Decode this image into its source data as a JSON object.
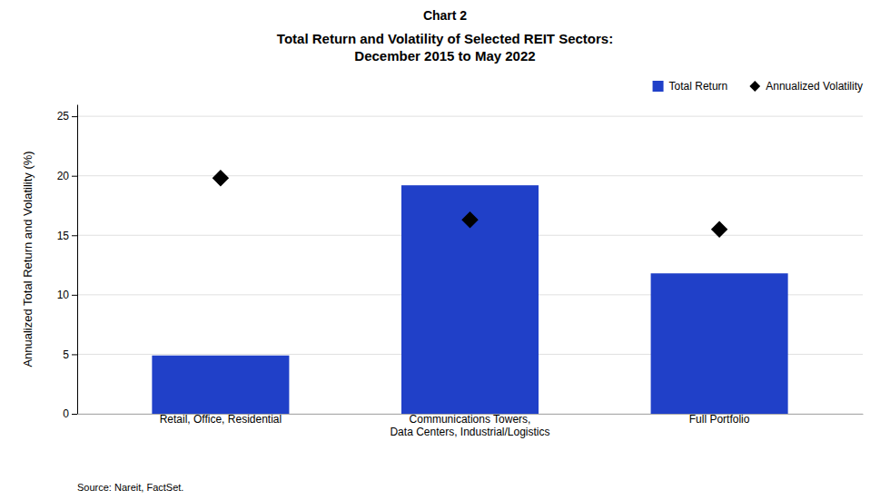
{
  "chart_data": {
    "type": "bar",
    "title": "Chart 2",
    "subtitle": "Total Return and Volatility of Selected REIT Sectors:\nDecember 2015 to May 2022",
    "categories": [
      "Retail, Office, Residential",
      "Communications Towers,\nData Centers, Industrial/Logistics",
      "Full Portfolio"
    ],
    "series": [
      {
        "name": "Total Return",
        "type": "bar",
        "color": "#2040C8",
        "values": [
          4.9,
          19.2,
          11.8
        ]
      },
      {
        "name": "Annualized Volatility",
        "type": "scatter",
        "marker": "diamond",
        "color": "#000000",
        "values": [
          19.8,
          16.3,
          15.5
        ]
      }
    ],
    "y_label": "Annualized Total Return and Volatility (%)",
    "ylim": [
      0,
      26
    ],
    "yticks": [
      0,
      5,
      10,
      15,
      20,
      25
    ],
    "grid": true,
    "legend": "upper right",
    "annotations": [
      "Source:  Nareit, FactSet."
    ]
  }
}
